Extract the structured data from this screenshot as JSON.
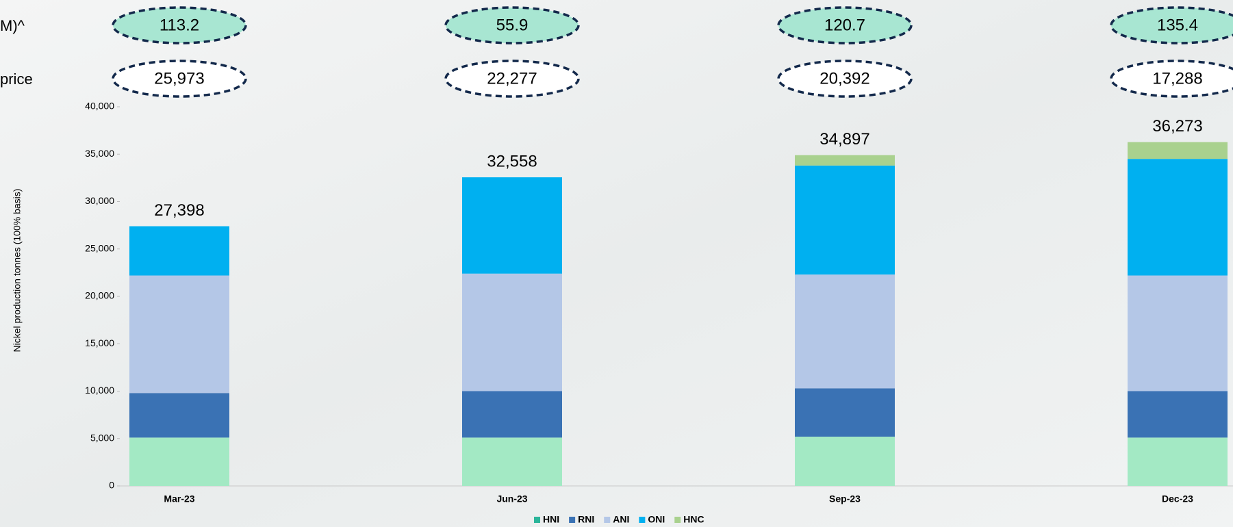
{
  "chart_data": {
    "type": "stacked_bar",
    "y_label": "Nickel production tonnes (100% basis)",
    "categories": [
      "Mar-23",
      "Jun-23",
      "Sep-23",
      "Dec-23"
    ],
    "series": [
      {
        "name": "HNI",
        "color": "#a3e9c4",
        "legend_color": "#2bb59a",
        "values": [
          5100,
          5100,
          5200,
          5100
        ]
      },
      {
        "name": "RNI",
        "color": "#3a72b4",
        "values": [
          4700,
          4900,
          5100,
          4900
        ]
      },
      {
        "name": "ANI",
        "color": "#b4c7e7",
        "values": [
          12400,
          12400,
          12000,
          12200
        ]
      },
      {
        "name": "ONI",
        "color": "#00b0f0",
        "values": [
          5198,
          10158,
          11500,
          12300
        ]
      },
      {
        "name": "HNC",
        "color": "#a9d18e",
        "values": [
          0,
          0,
          1097,
          1773
        ]
      }
    ],
    "totals": [
      27398,
      32558,
      34897,
      36273
    ],
    "total_labels": [
      "27,398",
      "32,558",
      "34,897",
      "36,273"
    ],
    "ylim": [
      0,
      40000
    ],
    "yticks": [
      0,
      {
        "value": 5000,
        "label": "5,000"
      },
      {
        "value": 10000,
        "label": "10,000"
      },
      {
        "value": 15000,
        "label": "15,000"
      },
      {
        "value": 20000,
        "label": "20,000"
      },
      {
        "value": 25000,
        "label": "25,000"
      },
      {
        "value": 30000,
        "label": "30,000"
      },
      {
        "value": 35000,
        "label": "35,000"
      },
      {
        "value": 40000,
        "label": "40,000"
      }
    ],
    "indicator_rows": [
      {
        "label": "M)^",
        "fill": "#a8e6d2",
        "values": [
          "113.2",
          "55.9",
          "120.7",
          "135.4"
        ]
      },
      {
        "label": "price",
        "fill": "#ffffff",
        "values": [
          "25,973",
          "22,277",
          "20,392",
          "17,288"
        ]
      }
    ]
  }
}
